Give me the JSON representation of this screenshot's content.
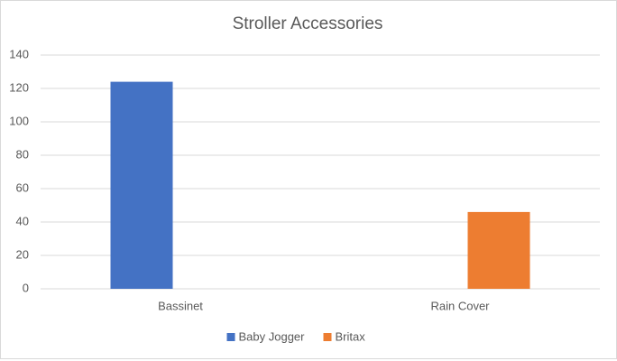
{
  "chart_data": {
    "type": "bar",
    "title": "Stroller Accessories",
    "categories": [
      "Bassinet",
      "Rain Cover"
    ],
    "series": [
      {
        "name": "Baby Jogger",
        "color": "#4472c4",
        "values": [
          124,
          null
        ]
      },
      {
        "name": "Britax",
        "color": "#ed7d31",
        "values": [
          null,
          46
        ]
      }
    ],
    "ylim": [
      0,
      140
    ],
    "yticks": [
      0,
      20,
      40,
      60,
      80,
      100,
      120,
      140
    ],
    "grid": true,
    "legend": "bottom"
  }
}
